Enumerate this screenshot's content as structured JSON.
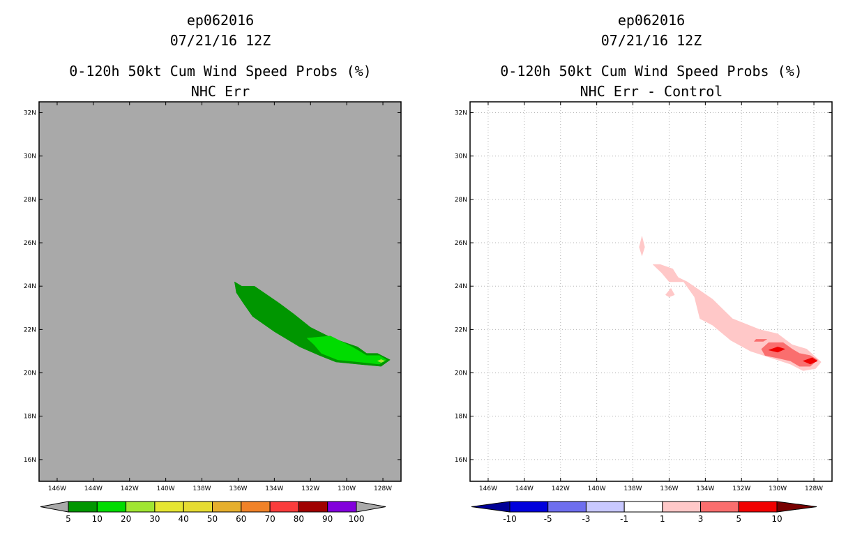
{
  "left": {
    "title_lines": [
      "ep062016",
      "07/21/16 12Z",
      "0-120h 50kt Cum Wind Speed Probs (%)",
      "NHC Err"
    ]
  },
  "right": {
    "title_lines": [
      "ep062016",
      "07/21/16 12Z",
      "0-120h 50kt Cum Wind Speed Probs (%)",
      "NHC Err - Control"
    ]
  },
  "chart_data": [
    {
      "type": "heatmap",
      "title": "0-120h 50kt Cum Wind Speed Probs (%)",
      "subtitle": "NHC Err",
      "storm": "ep062016",
      "datetime": "07/21/16 12Z",
      "background_color": "#a9a9a9",
      "xlim": [
        -147,
        -127
      ],
      "ylim": [
        15,
        32.5
      ],
      "x_ticks": [
        -146,
        -144,
        -142,
        -140,
        -138,
        -136,
        -134,
        -132,
        -130,
        -128
      ],
      "x_tick_labels": [
        "146W",
        "144W",
        "142W",
        "140W",
        "138W",
        "136W",
        "134W",
        "132W",
        "130W",
        "128W"
      ],
      "y_ticks": [
        16,
        18,
        20,
        22,
        24,
        26,
        28,
        30,
        32
      ],
      "y_tick_labels": [
        "16N",
        "18N",
        "20N",
        "22N",
        "24N",
        "26N",
        "28N",
        "30N",
        "32N"
      ],
      "grid": false,
      "legend": {
        "position": "bottom",
        "boundaries": [
          "5",
          "10",
          "20",
          "30",
          "40",
          "50",
          "60",
          "70",
          "80",
          "90",
          "100"
        ],
        "colors": [
          "#009600",
          "#00dc00",
          "#a0e632",
          "#e6e632",
          "#e6dc32",
          "#e6af2d",
          "#f08228",
          "#fa3c3c",
          "#a00000",
          "#8200dc"
        ],
        "end_colors": [
          "#a9a9a9",
          "#a9a9a9"
        ]
      },
      "contours": [
        {
          "level": "5-10",
          "color": "#009600",
          "points": [
            [
              -136.2,
              24.2
            ],
            [
              -135.8,
              24
            ],
            [
              -135.1,
              24
            ],
            [
              -133.7,
              23.2
            ],
            [
              -132.9,
              22.7
            ],
            [
              -132,
              22.1
            ],
            [
              -130.8,
              21.6
            ],
            [
              -129.4,
              21.2
            ],
            [
              -128.9,
              20.9
            ],
            [
              -128.3,
              20.9
            ],
            [
              -127.6,
              20.6
            ],
            [
              -128.1,
              20.3
            ],
            [
              -129.4,
              20.4
            ],
            [
              -130.6,
              20.5
            ],
            [
              -131.5,
              20.8
            ],
            [
              -132.6,
              21.2
            ],
            [
              -134,
              21.9
            ],
            [
              -135.2,
              22.6
            ],
            [
              -135.7,
              23.2
            ],
            [
              -136.1,
              23.7
            ]
          ]
        },
        {
          "level": "10-20",
          "color": "#00dc00",
          "points": [
            [
              -132.2,
              21.6
            ],
            [
              -130.9,
              21.7
            ],
            [
              -129.7,
              21.2
            ],
            [
              -128.9,
              20.8
            ],
            [
              -128.2,
              20.8
            ],
            [
              -127.8,
              20.6
            ],
            [
              -128.2,
              20.4
            ],
            [
              -129.3,
              20.5
            ],
            [
              -130.5,
              20.6
            ],
            [
              -131.4,
              20.9
            ],
            [
              -131.8,
              21.3
            ]
          ]
        },
        {
          "level": "20-30",
          "color": "#a0e632",
          "points": [
            [
              -128.1,
              20.62
            ],
            [
              -127.9,
              20.55
            ],
            [
              -128.1,
              20.48
            ],
            [
              -128.3,
              20.55
            ]
          ]
        }
      ]
    },
    {
      "type": "heatmap",
      "title": "0-120h 50kt Cum Wind Speed Probs (%)",
      "subtitle": "NHC Err - Control",
      "storm": "ep062016",
      "datetime": "07/21/16 12Z",
      "background_color": "#ffffff",
      "xlim": [
        -147,
        -127
      ],
      "ylim": [
        15,
        32.5
      ],
      "x_ticks": [
        -146,
        -144,
        -142,
        -140,
        -138,
        -136,
        -134,
        -132,
        -130,
        -128
      ],
      "x_tick_labels": [
        "146W",
        "144W",
        "142W",
        "140W",
        "138W",
        "136W",
        "134W",
        "132W",
        "130W",
        "128W"
      ],
      "y_ticks": [
        16,
        18,
        20,
        22,
        24,
        26,
        28,
        30,
        32
      ],
      "y_tick_labels": [
        "16N",
        "18N",
        "20N",
        "22N",
        "24N",
        "26N",
        "28N",
        "30N",
        "32N"
      ],
      "grid": true,
      "legend": {
        "position": "bottom",
        "boundaries": [
          "-10",
          "-5",
          "-3",
          "-1",
          "1",
          "3",
          "5",
          "10"
        ],
        "colors": [
          "#0000dc",
          "#6e6eef",
          "#c8c8ff",
          "#ffffff",
          "#ffc8c8",
          "#fa6e6e",
          "#f00000"
        ],
        "end_colors": [
          "#000096",
          "#780000"
        ]
      },
      "contours": [
        {
          "level": "1-3",
          "color": "#ffc8c8",
          "points": [
            [
              -137.5,
              26.3
            ],
            [
              -137.35,
              25.8
            ],
            [
              -137.5,
              25.4
            ],
            [
              -137.65,
              25.8
            ]
          ]
        },
        {
          "level": "1-3",
          "color": "#ffc8c8",
          "points": [
            [
              -135.9,
              23.9
            ],
            [
              -135.7,
              23.6
            ],
            [
              -136,
              23.5
            ],
            [
              -136.2,
              23.6
            ]
          ]
        },
        {
          "level": "1-3",
          "color": "#ffc8c8",
          "points": [
            [
              -136.9,
              25
            ],
            [
              -136.5,
              25
            ],
            [
              -135.8,
              24.8
            ],
            [
              -135.5,
              24.4
            ],
            [
              -135,
              24.2
            ],
            [
              -133.6,
              23.4
            ],
            [
              -132.5,
              22.5
            ],
            [
              -131,
              22
            ],
            [
              -130,
              21.8
            ],
            [
              -129.2,
              21.3
            ],
            [
              -128.4,
              21.1
            ],
            [
              -127.6,
              20.5
            ],
            [
              -127.9,
              20.2
            ],
            [
              -128.6,
              20.1
            ],
            [
              -129.3,
              20.4
            ],
            [
              -130.4,
              20.7
            ],
            [
              -131.5,
              21
            ],
            [
              -132.6,
              21.5
            ],
            [
              -133.6,
              22.2
            ],
            [
              -134.3,
              22.5
            ],
            [
              -134.6,
              23.5
            ],
            [
              -135.2,
              24.2
            ],
            [
              -136,
              24.2
            ],
            [
              -136.4,
              24.6
            ]
          ]
        },
        {
          "level": "3-5",
          "color": "#fa6e6e",
          "points": [
            [
              -131.2,
              21.55
            ],
            [
              -130.6,
              21.55
            ],
            [
              -130.8,
              21.45
            ],
            [
              -131.3,
              21.45
            ]
          ]
        },
        {
          "level": "3-5",
          "color": "#fa6e6e",
          "points": [
            [
              -130.9,
              21.1
            ],
            [
              -130.5,
              21.4
            ],
            [
              -129.7,
              21.4
            ],
            [
              -129.2,
              21.1
            ],
            [
              -128.8,
              20.9
            ],
            [
              -128.2,
              20.8
            ],
            [
              -127.8,
              20.6
            ],
            [
              -128.2,
              20.3
            ],
            [
              -128.8,
              20.3
            ],
            [
              -129.3,
              20.55
            ],
            [
              -130.1,
              20.7
            ],
            [
              -130.7,
              20.8
            ]
          ]
        },
        {
          "level": "5-10",
          "color": "#f00000",
          "points": [
            [
              -130.5,
              21.05
            ],
            [
              -130.0,
              21.2
            ],
            [
              -129.6,
              21.1
            ],
            [
              -130.0,
              20.95
            ]
          ]
        },
        {
          "level": "5-10",
          "color": "#f00000",
          "points": [
            [
              -128.6,
              20.55
            ],
            [
              -128.1,
              20.7
            ],
            [
              -127.8,
              20.55
            ],
            [
              -128.2,
              20.4
            ]
          ]
        }
      ]
    }
  ]
}
